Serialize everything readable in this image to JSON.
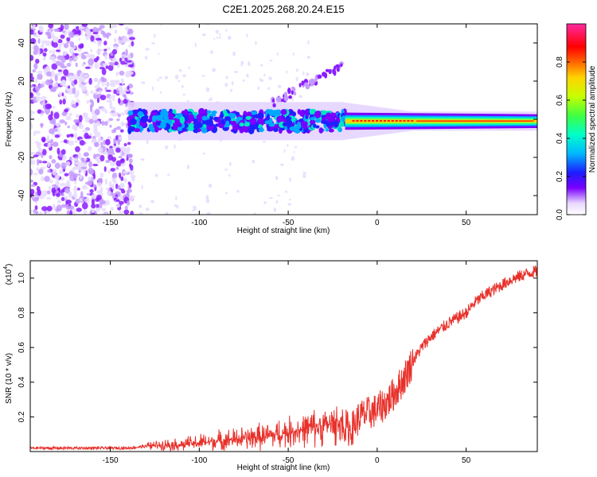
{
  "chart_data": [
    {
      "type": "heatmap",
      "title": "C2E1.2025.268.20.24.E15",
      "xlabel": "Height of straight line (km)",
      "ylabel": "Frequency (Hz)",
      "xlim": [
        -195,
        90
      ],
      "ylim": [
        -50,
        50
      ],
      "x_ticks": [
        -150,
        -100,
        -50,
        0,
        50
      ],
      "y_ticks": [
        -40,
        -20,
        0,
        20,
        40
      ],
      "colorbar": {
        "label": "Normalized spectral amplitude",
        "range": [
          0.0,
          1.0
        ],
        "ticks": [
          0.0,
          0.2,
          0.4,
          0.6,
          0.8
        ],
        "tick_labels": [
          "0.0",
          "0.2",
          "0.4",
          "0.6",
          "0.8"
        ]
      },
      "features": [
        {
          "name": "noise region",
          "x_range": [
            -195,
            -140
          ],
          "freq_range": [
            -50,
            50
          ],
          "amplitude": 0.05
        },
        {
          "name": "central band",
          "x_range": [
            -140,
            90
          ],
          "freq_center": 0,
          "amplitude": [
            0.2,
            0.95
          ]
        },
        {
          "name": "rising branch",
          "x_range": [
            -60,
            -20
          ],
          "freq_range": [
            10,
            30
          ],
          "amplitude": 0.15
        }
      ]
    },
    {
      "type": "line",
      "title": "",
      "xlabel": "Height of straight line (km)",
      "ylabel": "SNR (10 * v/v)",
      "y_scale_label": "(x10",
      "y_scale_exp": "4",
      "y_scale_close": ")",
      "xlim": [
        -195,
        90
      ],
      "ylim": [
        0,
        1.1
      ],
      "x_ticks": [
        -150,
        -100,
        -50,
        0,
        50
      ],
      "y_ticks": [
        0.2,
        0.4,
        0.6,
        0.8,
        1.0
      ],
      "y_tick_labels": [
        "0.2",
        "0.4",
        "0.6",
        "0.8",
        "1.0"
      ],
      "color": "#e8302a",
      "series": [
        {
          "name": "SNR",
          "x": [
            -195,
            -180,
            -160,
            -140,
            -130,
            -120,
            -110,
            -100,
            -90,
            -80,
            -70,
            -60,
            -50,
            -40,
            -30,
            -20,
            -15,
            -10,
            -5,
            0,
            5,
            10,
            15,
            20,
            25,
            30,
            35,
            40,
            45,
            50,
            55,
            60,
            65,
            70,
            75,
            80,
            85,
            90
          ],
          "values": [
            0.02,
            0.02,
            0.02,
            0.02,
            0.03,
            0.04,
            0.04,
            0.05,
            0.06,
            0.07,
            0.08,
            0.09,
            0.11,
            0.13,
            0.15,
            0.17,
            0.12,
            0.2,
            0.22,
            0.24,
            0.28,
            0.34,
            0.42,
            0.52,
            0.6,
            0.66,
            0.7,
            0.74,
            0.77,
            0.8,
            0.86,
            0.9,
            0.93,
            0.96,
            0.99,
            1.01,
            1.03,
            1.04
          ]
        }
      ]
    }
  ]
}
